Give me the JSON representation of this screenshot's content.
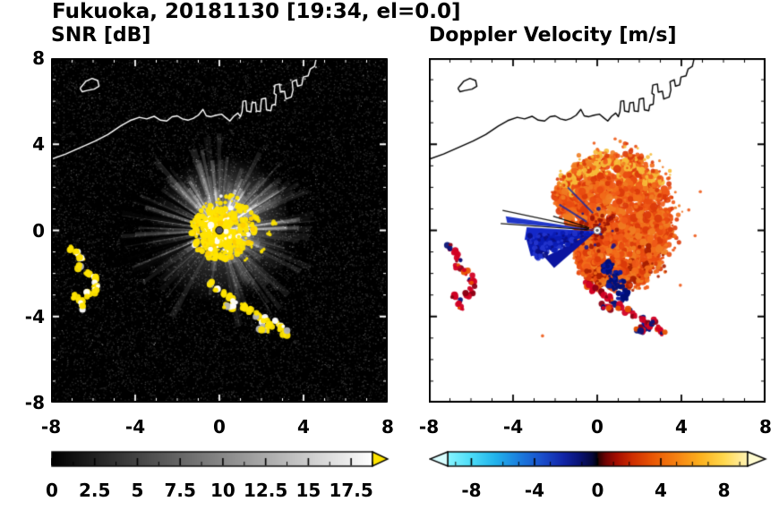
{
  "title": "Fukuoka, 20181130 [19:34, el=0.0]",
  "panels": {
    "snr": {
      "title": "SNR [dB]"
    },
    "doppler": {
      "title": "Doppler Velocity [m/s]"
    }
  },
  "chart_data": [
    {
      "panel": "snr",
      "type": "heatmap",
      "title": "SNR [dB]",
      "xlabel": "",
      "ylabel": "",
      "xlim": [
        -8,
        8
      ],
      "ylim": [
        -8,
        8
      ],
      "xtick_values": [
        -8,
        -4,
        0,
        4,
        8
      ],
      "xtick_labels": [
        "-8",
        "-4",
        "0",
        "4",
        "8"
      ],
      "ytick_values": [
        8,
        4,
        0,
        -4,
        -8
      ],
      "ytick_labels": [
        "8",
        "4",
        "0",
        "-4",
        "-8"
      ],
      "background_color": "#000000",
      "radar_center": [
        0,
        0
      ],
      "echo_core": {
        "center": [
          0.1,
          -0.1
        ],
        "radius": 1.4,
        "color": "#ffe400"
      },
      "echo_specks": [
        [
          1.5,
          0.2
        ],
        [
          1.9,
          0.5
        ],
        [
          2.3,
          -0.1
        ],
        [
          1.6,
          -0.7
        ],
        [
          2.05,
          -1.0
        ],
        [
          1.2,
          0.9
        ],
        [
          2.6,
          0.3
        ],
        [
          1.3,
          -1.3
        ]
      ],
      "blocked_ray_angles_deg": [
        148,
        159,
        168,
        176,
        187,
        197,
        206
      ],
      "clutter_color": "#ffe400",
      "colorbar": {
        "range": [
          0,
          18.75
        ],
        "tick_values": [
          0,
          2.5,
          5,
          7.5,
          10,
          12.5,
          15,
          17.5
        ],
        "tick_labels": [
          "0",
          "2.5",
          "5",
          "7.5",
          "10",
          "12.5",
          "15",
          "17.5"
        ],
        "stops": [
          [
            0,
            "#000000"
          ],
          [
            18.75,
            "#ffffff"
          ]
        ],
        "over_arrow_color": "#ffe400"
      }
    },
    {
      "panel": "doppler",
      "type": "heatmap",
      "title": "Doppler Velocity [m/s]",
      "xlabel": "",
      "ylabel": "",
      "xlim": [
        -8,
        8
      ],
      "ylim": [
        -8,
        8
      ],
      "xtick_values": [
        -8,
        -4,
        0,
        4,
        8
      ],
      "xtick_labels": [
        "-8",
        "-4",
        "0",
        "4",
        "8"
      ],
      "ytick_values": [
        8,
        4,
        0,
        -4,
        -8
      ],
      "ytick_labels": [],
      "background_color": "#ffffff",
      "radar_center": [
        0,
        0
      ],
      "outbound_max_radius_by_angle_deg": [
        [
          0,
          3.3
        ],
        [
          25,
          3.55
        ],
        [
          55,
          3.85
        ],
        [
          80,
          3.6
        ],
        [
          100,
          3.2
        ],
        [
          125,
          2.9
        ],
        [
          150,
          2.1
        ],
        [
          168,
          1.2
        ],
        [
          185,
          0.75
        ],
        [
          205,
          0.85
        ],
        [
          220,
          1.35
        ],
        [
          245,
          1.9
        ],
        [
          270,
          2.45
        ],
        [
          300,
          2.95
        ],
        [
          330,
          3.15
        ],
        [
          360,
          3.3
        ]
      ],
      "inbound_wedges": [
        {
          "tri": [
            [
              0.05,
              -0.05
            ],
            [
              -3.4,
              -0.3
            ],
            [
              -3.15,
              -1.2
            ]
          ],
          "color": "#0a1cb4"
        },
        {
          "tri": [
            [
              0.05,
              -0.05
            ],
            [
              -3.35,
              0.15
            ],
            [
              -3.45,
              -0.45
            ]
          ],
          "color": "#1428c8"
        },
        {
          "tri": [
            [
              0,
              0
            ],
            [
              -2.5,
              -1.25
            ],
            [
              -2.05,
              -1.75
            ]
          ],
          "color": "#0a14a0"
        },
        {
          "tri": [
            [
              0,
              0
            ],
            [
              -4.35,
              0.65
            ],
            [
              -4.28,
              0.35
            ]
          ],
          "color": "#2136c8"
        }
      ],
      "navy_spots": [
        {
          "c": [
            0.85,
            -2.3
          ],
          "r": 0.5
        },
        {
          "c": [
            1.25,
            -3.05
          ],
          "r": 0.32
        },
        {
          "c": [
            0.5,
            -1.7
          ],
          "r": 0.28
        },
        {
          "c": [
            2.35,
            -4.45
          ],
          "r": 0.25
        }
      ],
      "black_spokes_deg": [
        162,
        168,
        176
      ],
      "stray_specks": [
        [
          4.35,
          0.95
        ],
        [
          4.65,
          -0.25
        ],
        [
          3.95,
          -2.55
        ],
        [
          -0.15,
          4.05
        ],
        [
          0.85,
          4.25
        ],
        [
          -2.6,
          -4.9
        ],
        [
          4.9,
          1.8
        ]
      ],
      "colorbar": {
        "range": [
          -9.5,
          9.5
        ],
        "tick_values": [
          -8,
          -4,
          0,
          4,
          8
        ],
        "tick_labels": [
          "-8",
          "-4",
          "0",
          "4",
          "8"
        ],
        "stops": [
          [
            -9.5,
            "#86f5ff"
          ],
          [
            -8,
            "#4cdcf8"
          ],
          [
            -6.5,
            "#22b4ec"
          ],
          [
            -5,
            "#1b7ede"
          ],
          [
            -3.5,
            "#1a4ecb"
          ],
          [
            -2.2,
            "#1226a8"
          ],
          [
            -1.2,
            "#0a1478"
          ],
          [
            -0.35,
            "#06083c"
          ],
          [
            -0.05,
            "#020210"
          ],
          [
            0.05,
            "#2d0202"
          ],
          [
            0.5,
            "#6e0404"
          ],
          [
            1.2,
            "#a50d00"
          ],
          [
            2.2,
            "#cf2e00"
          ],
          [
            3.5,
            "#e95704"
          ],
          [
            5,
            "#f68212"
          ],
          [
            6.5,
            "#fcb11e"
          ],
          [
            8,
            "#ffd84e"
          ],
          [
            9.5,
            "#fff3b4"
          ]
        ],
        "under_arrow_color": "#d8fdff",
        "over_arrow_color": "#fffbd0"
      }
    }
  ],
  "map": {
    "coastline": [
      [
        -8,
        3.3
      ],
      [
        -7.3,
        3.55
      ],
      [
        -6.6,
        3.85
      ],
      [
        -5.9,
        4.15
      ],
      [
        -5.3,
        4.45
      ],
      [
        -4.7,
        4.85
      ],
      [
        -4.25,
        5.1
      ],
      [
        -3.8,
        5.25
      ],
      [
        -3.45,
        5.18
      ],
      [
        -3.1,
        5.3
      ],
      [
        -2.8,
        5.12
      ],
      [
        -2.5,
        5.08
      ],
      [
        -2.25,
        5.28
      ],
      [
        -2.0,
        5.32
      ],
      [
        -1.75,
        5.18
      ],
      [
        -1.5,
        5.12
      ],
      [
        -1.25,
        5.2
      ],
      [
        -1.0,
        5.35
      ],
      [
        -0.78,
        5.62
      ],
      [
        -0.62,
        5.32
      ],
      [
        -0.4,
        5.28
      ],
      [
        -0.15,
        5.35
      ],
      [
        0.1,
        5.4
      ],
      [
        0.32,
        5.22
      ],
      [
        0.5,
        5.08
      ],
      [
        0.68,
        5.3
      ],
      [
        0.88,
        5.45
      ],
      [
        1.0,
        5.28
      ],
      [
        1.08,
        5.52
      ],
      [
        1.12,
        6.0
      ],
      [
        1.26,
        6.02
      ],
      [
        1.3,
        5.55
      ],
      [
        1.5,
        5.5
      ],
      [
        1.55,
        5.92
      ],
      [
        1.72,
        5.95
      ],
      [
        1.76,
        5.55
      ],
      [
        1.95,
        5.52
      ],
      [
        2.0,
        6.1
      ],
      [
        2.2,
        6.14
      ],
      [
        2.24,
        5.6
      ],
      [
        2.45,
        5.56
      ],
      [
        2.5,
        5.82
      ],
      [
        2.66,
        5.86
      ],
      [
        2.7,
        6.3
      ],
      [
        2.6,
        6.36
      ],
      [
        2.64,
        6.75
      ],
      [
        2.86,
        6.8
      ],
      [
        2.9,
        6.42
      ],
      [
        3.1,
        6.46
      ],
      [
        3.16,
        6.1
      ],
      [
        3.42,
        6.2
      ],
      [
        3.5,
        6.52
      ],
      [
        3.46,
        6.9
      ],
      [
        3.66,
        7.0
      ],
      [
        3.72,
        6.7
      ],
      [
        3.92,
        6.76
      ],
      [
        3.98,
        7.12
      ],
      [
        4.22,
        7.18
      ],
      [
        4.32,
        7.5
      ],
      [
        4.52,
        7.62
      ],
      [
        4.62,
        8.05
      ]
    ],
    "island": [
      [
        -6.62,
        6.6
      ],
      [
        -6.35,
        6.92
      ],
      [
        -6.05,
        7.06
      ],
      [
        -5.78,
        6.96
      ],
      [
        -5.72,
        6.7
      ],
      [
        -5.95,
        6.56
      ],
      [
        -6.28,
        6.5
      ],
      [
        -6.52,
        6.44
      ],
      [
        -6.62,
        6.6
      ]
    ]
  },
  "ground_clutter_patches": [
    [
      [
        -7.0,
        -0.8
      ],
      [
        -6.72,
        -1.05
      ],
      [
        -6.56,
        -1.35
      ],
      [
        -6.62,
        -1.65
      ]
    ],
    [
      [
        -6.25,
        -1.95
      ],
      [
        -6.0,
        -2.2
      ],
      [
        -5.85,
        -2.5
      ],
      [
        -5.95,
        -2.8
      ],
      [
        -6.2,
        -2.95
      ]
    ],
    [
      [
        -6.85,
        -3.05
      ],
      [
        -6.6,
        -3.3
      ],
      [
        -6.5,
        -3.55
      ]
    ],
    [
      [
        -0.45,
        -2.5
      ],
      [
        -0.15,
        -2.75
      ],
      [
        0.2,
        -2.95
      ],
      [
        0.55,
        -3.1
      ],
      [
        0.75,
        -3.35
      ],
      [
        0.55,
        -3.6
      ],
      [
        0.3,
        -3.5
      ]
    ],
    [
      [
        1.1,
        -3.5
      ],
      [
        1.45,
        -3.7
      ],
      [
        1.8,
        -3.95
      ],
      [
        2.15,
        -4.15
      ],
      [
        2.4,
        -4.4
      ],
      [
        2.2,
        -4.65
      ],
      [
        1.95,
        -4.55
      ]
    ],
    [
      [
        2.7,
        -4.25
      ],
      [
        2.95,
        -4.5
      ],
      [
        3.1,
        -4.75
      ]
    ]
  ]
}
